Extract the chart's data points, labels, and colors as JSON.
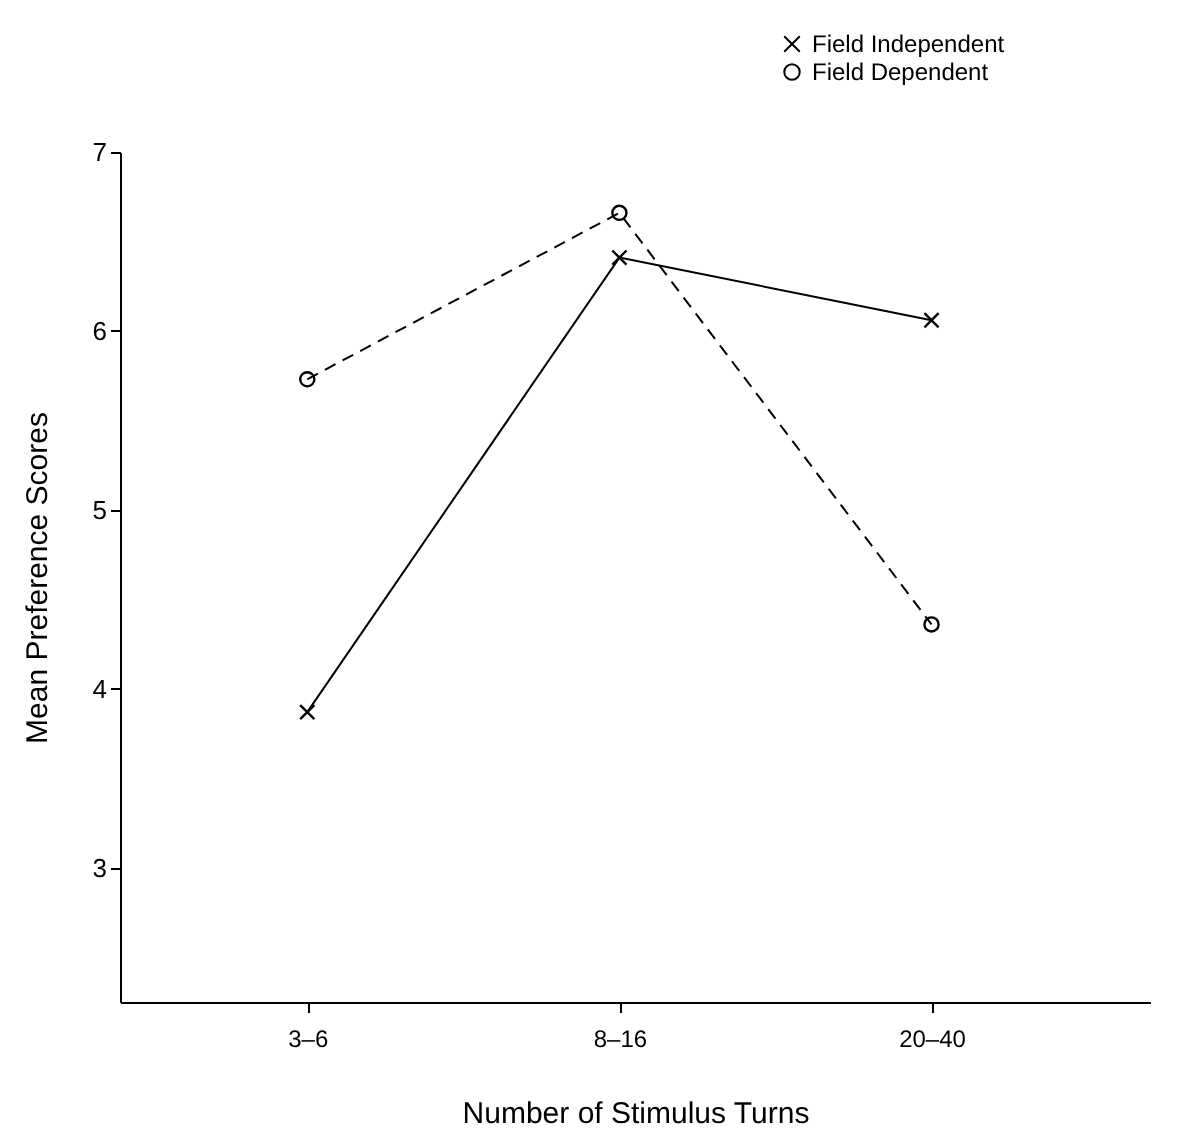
{
  "chart_data": {
    "type": "line",
    "xlabel": "Number of Stimulus Turns",
    "ylabel": "Mean Preference Scores",
    "categories": [
      "3–6",
      "8–16",
      "20–40"
    ],
    "series": [
      {
        "name": "Field Independent",
        "color": "#000000",
        "values": [
          3.87,
          6.41,
          6.06
        ],
        "marker": "cross",
        "line_style": "solid"
      },
      {
        "name": "Field Dependent",
        "color": "#000000",
        "values": [
          5.73,
          6.66,
          4.36
        ],
        "marker": "circle",
        "line_style": "dashed"
      }
    ],
    "ylim": [
      2.25,
      7
    ],
    "yticks": [
      3,
      4,
      5,
      6,
      7
    ],
    "grid": false,
    "legend": "top right"
  }
}
